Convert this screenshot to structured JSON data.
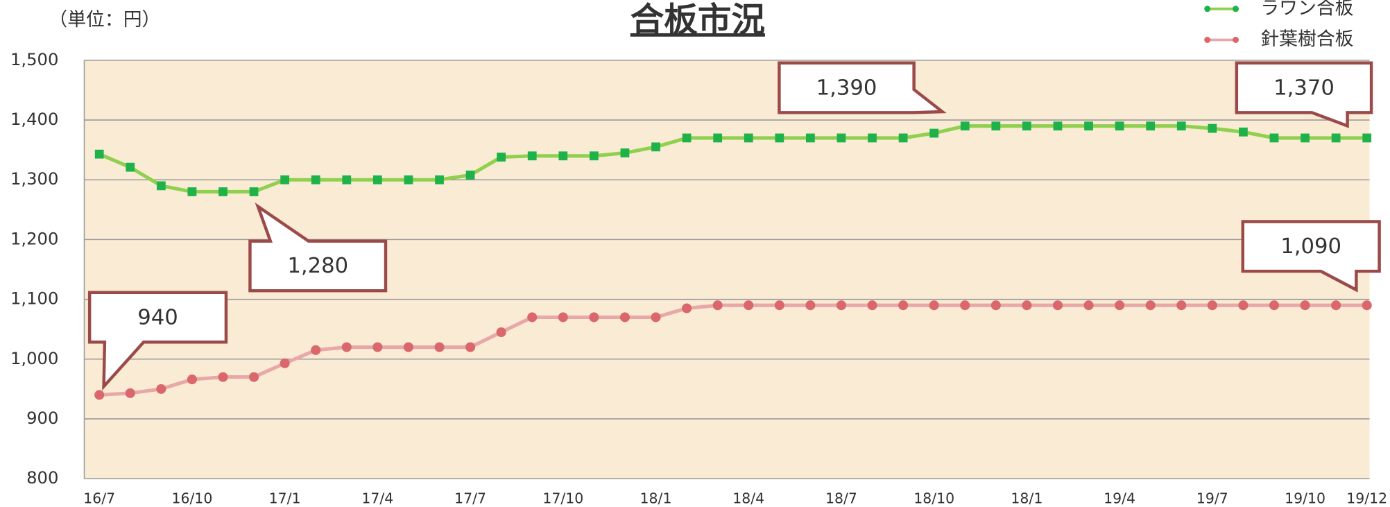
{
  "chart_data": {
    "type": "line",
    "title": "合板市況",
    "unit_label": "（単位：円）",
    "categories": [
      "16/7",
      null,
      null,
      "16/10",
      null,
      null,
      "17/1",
      null,
      null,
      "17/4",
      null,
      null,
      "17/7",
      null,
      null,
      "17/10",
      null,
      null,
      "18/1",
      null,
      null,
      "18/4",
      null,
      null,
      "18/7",
      null,
      null,
      "18/10",
      null,
      null,
      "18/1",
      null,
      null,
      "19/4",
      null,
      null,
      "19/7",
      null,
      null,
      "19/10",
      null,
      "19/12"
    ],
    "series": [
      {
        "name": "ラワン合板",
        "color": "#8fd14f",
        "marker_color": "#1fb24a",
        "marker": "square",
        "values": [
          1343,
          1321,
          1290,
          1280,
          1280,
          1280,
          1300,
          1300,
          1300,
          1300,
          1300,
          1300,
          1308,
          1338,
          1340,
          1340,
          1340,
          1345,
          1355,
          1370,
          1370,
          1370,
          1370,
          1370,
          1370,
          1370,
          1370,
          1378,
          1390,
          1390,
          1390,
          1390,
          1390,
          1390,
          1390,
          1390,
          1386,
          1380,
          1370,
          1370,
          1370,
          1370
        ]
      },
      {
        "name": "針葉樹合板",
        "color": "#e8a8a8",
        "marker_color": "#d9676b",
        "marker": "circle",
        "values": [
          940,
          943,
          950,
          966,
          970,
          970,
          993,
          1015,
          1020,
          1020,
          1020,
          1020,
          1020,
          1045,
          1070,
          1070,
          1070,
          1070,
          1070,
          1085,
          1090,
          1090,
          1090,
          1090,
          1090,
          1090,
          1090,
          1090,
          1090,
          1090,
          1090,
          1090,
          1090,
          1090,
          1090,
          1090,
          1090,
          1090,
          1090,
          1090,
          1090,
          1090
        ]
      }
    ],
    "ylim": [
      800,
      1500
    ],
    "yticks": [
      {
        "value": 800,
        "label": "800"
      },
      {
        "value": 900,
        "label": "900"
      },
      {
        "value": 1000,
        "label": "1,000"
      },
      {
        "value": 1100,
        "label": "1,100"
      },
      {
        "value": 1200,
        "label": "1,200"
      },
      {
        "value": 1300,
        "label": "1,300"
      },
      {
        "value": 1400,
        "label": "1,400"
      },
      {
        "value": 1500,
        "label": "1,500"
      }
    ],
    "grid": true,
    "legend": "top-right",
    "annotations": [
      {
        "text": "940",
        "color": "#1a6fb0"
      },
      {
        "text": "1,280",
        "color": "#5b9bd5"
      },
      {
        "text": "1,390",
        "color": "#404040"
      },
      {
        "text": "1,370",
        "color": "#ff0000"
      },
      {
        "text": "1,090",
        "color": "#ff0000"
      }
    ]
  }
}
